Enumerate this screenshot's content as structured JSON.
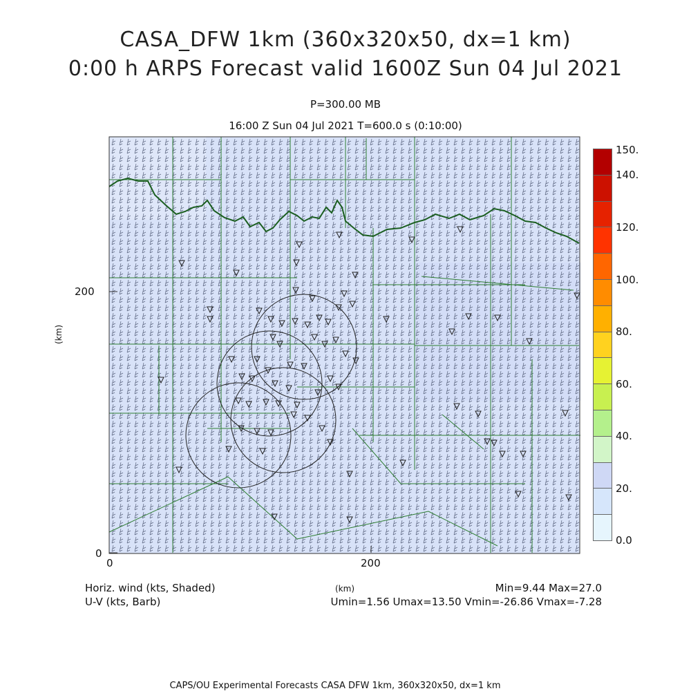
{
  "title": {
    "line1": "CASA_DFW 1km (360x320x50, dx=1 km)",
    "line2": "0:00 h ARPS Forecast valid 1600Z Sun 04 Jul 2021",
    "pressure": "P=300.00 MB",
    "time": "16:00 Z Sun 04 Jul 2021    T=600.0 s (0:10:00)"
  },
  "axes": {
    "x_ticks": [
      "0",
      "200"
    ],
    "y_ticks": [
      "0",
      "200"
    ],
    "x_label": "(km)",
    "y_label": "(km)"
  },
  "colorbar": {
    "labels": [
      "150.",
      "140.",
      "120.",
      "100.",
      "80.",
      "60.",
      "40.",
      "20.",
      "0.0"
    ],
    "colors": [
      "#b30000",
      "#cc1100",
      "#e62200",
      "#ff3300",
      "#ff6600",
      "#ff8c00",
      "#ffb000",
      "#ffd21f",
      "#e6f233",
      "#c8f050",
      "#b4f08c",
      "#d2f5c8",
      "#cfd8f5",
      "#d6e6fb",
      "#e6f5fd"
    ]
  },
  "field": {
    "shade_color": "#d8e2f8",
    "county_line_color": "#2e7d32",
    "state_line_color": "#1b5e20"
  },
  "footer": {
    "field_label": "Horiz. wind (kts, Shaded)",
    "barb_label": "U-V (kts, Barb)",
    "minmax": "Min=9.44 Max=27.0",
    "uv_stats": "Umin=1.56 Umax=13.50 Vmin=-26.86 Vmax=-7.28",
    "bottom": "CAPS/OU Experimental Forecasts  CASA DFW 1km, 360x320x50, dx=1 km"
  }
}
